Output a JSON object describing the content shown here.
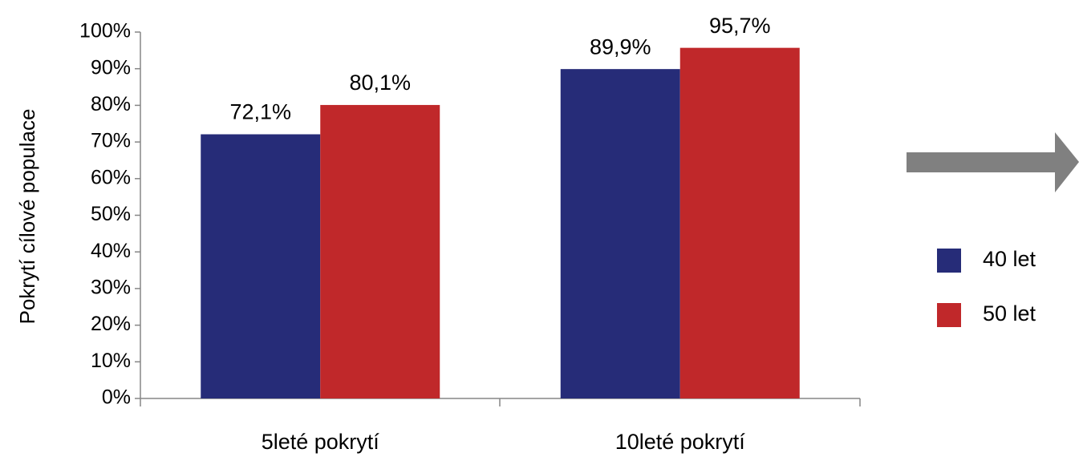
{
  "chart_data": {
    "type": "bar",
    "y_label": "Pokrytí cílové populace",
    "categories": [
      "5leté pokrytí",
      "10leté pokrytí"
    ],
    "series": [
      {
        "name": "40 let",
        "color": "#262c78",
        "values": [
          72.1,
          89.9
        ],
        "value_labels": [
          "72,1%",
          "89,9%"
        ]
      },
      {
        "name": "50 let",
        "color": "#c0282a",
        "values": [
          80.1,
          95.7
        ],
        "value_labels": [
          "80,1%",
          "95,7%"
        ]
      }
    ],
    "ylim": [
      0,
      100
    ],
    "yticks": [
      {
        "value": 0,
        "label": "0%"
      },
      {
        "value": 10,
        "label": "10%"
      },
      {
        "value": 20,
        "label": "20%"
      },
      {
        "value": 30,
        "label": "30%"
      },
      {
        "value": 40,
        "label": "40%"
      },
      {
        "value": 50,
        "label": "50%"
      },
      {
        "value": 60,
        "label": "60%"
      },
      {
        "value": 70,
        "label": "70%"
      },
      {
        "value": 80,
        "label": "80%"
      },
      {
        "value": 90,
        "label": "90%"
      },
      {
        "value": 100,
        "label": "100%"
      }
    ],
    "legend": "right"
  }
}
